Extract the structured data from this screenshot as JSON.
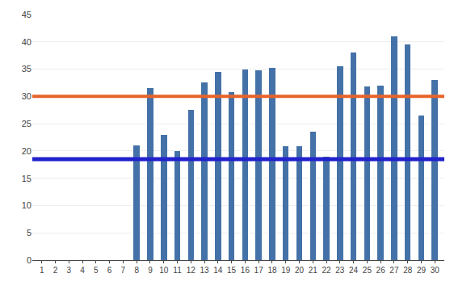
{
  "chart_data": {
    "type": "bar",
    "x": [
      1,
      2,
      3,
      4,
      5,
      6,
      7,
      8,
      9,
      10,
      11,
      12,
      13,
      14,
      15,
      16,
      17,
      18,
      19,
      20,
      21,
      22,
      23,
      24,
      25,
      26,
      27,
      28,
      29,
      30
    ],
    "values": [
      0,
      0,
      0,
      0,
      0,
      0,
      0,
      21,
      31.5,
      23,
      20,
      27.5,
      32.5,
      34.5,
      30.8,
      35,
      34.8,
      35.3,
      20.8,
      20.8,
      23.5,
      19,
      35.5,
      38,
      31.8,
      32,
      41,
      39.5,
      26.5,
      33
    ],
    "color": "#4472a8",
    "xlim": [
      0.3,
      30.7
    ],
    "xticks": [
      1,
      2,
      3,
      4,
      5,
      6,
      7,
      8,
      9,
      10,
      11,
      12,
      13,
      14,
      15,
      16,
      17,
      18,
      19,
      20,
      21,
      22,
      23,
      24,
      25,
      26,
      27,
      28,
      29,
      30
    ],
    "ylim": [
      0,
      45
    ],
    "yticks": [
      0,
      5,
      10,
      15,
      20,
      25,
      30,
      35,
      40,
      45
    ],
    "grid": true,
    "hlines": [
      {
        "y": 30,
        "color": "#e8632a"
      },
      {
        "y": 18.5,
        "color": "#2222cc"
      }
    ]
  }
}
